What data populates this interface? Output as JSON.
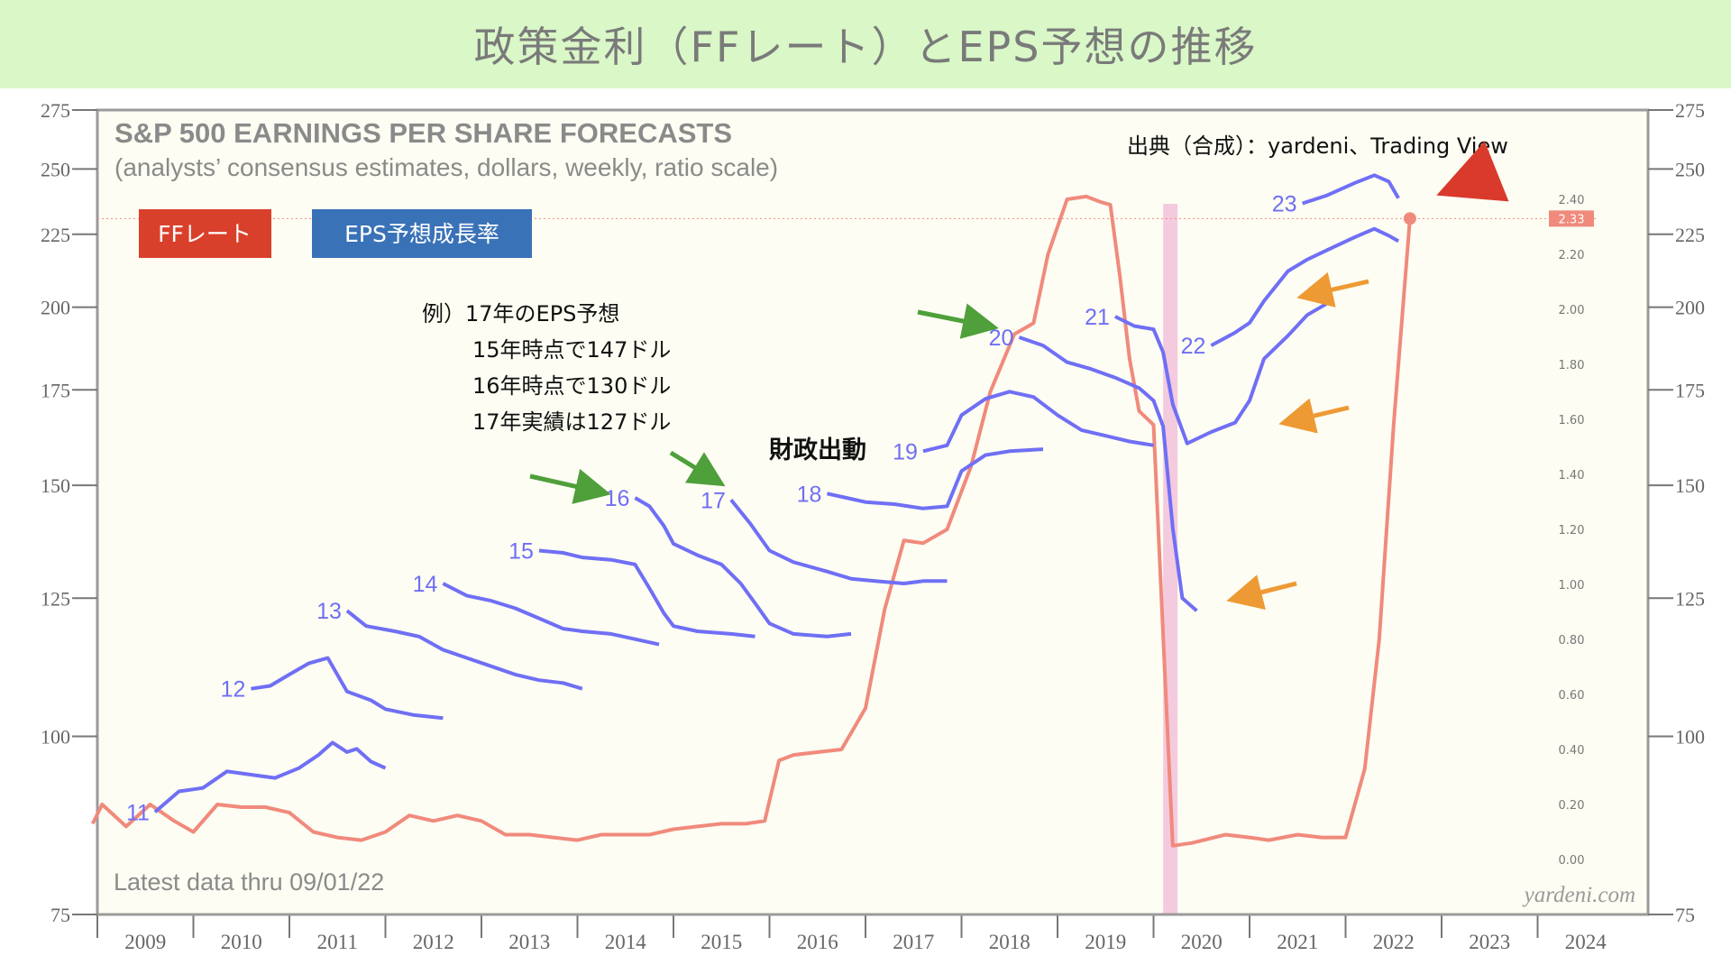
{
  "page_title": "政策金利（FFレート）とEPS予想の推移",
  "chart_data": {
    "type": "line",
    "title": "S&P 500 EARNINGS PER SHARE FORECASTS",
    "subtitle": "(analysts’ consensus estimates, dollars, weekly, ratio scale)",
    "source": "出典（合成）：yardeni、Trading View",
    "footnote": "Latest data thru 09/01/22",
    "watermark": "yardeni.com",
    "left_axis": {
      "scale": "log",
      "ylim": [
        75,
        275
      ],
      "ticks": [
        75,
        100,
        125,
        150,
        175,
        200,
        225,
        250,
        275
      ]
    },
    "right_axis": {
      "ticks": [
        "0.00",
        "0.20",
        "0.40",
        "0.60",
        "0.80",
        "1.00",
        "1.20",
        "1.40",
        "1.60",
        "1.80",
        "2.00",
        "2.20",
        "2.40"
      ],
      "current_value_label": "2.33"
    },
    "x_axis": {
      "categories": [
        "2009",
        "2010",
        "2011",
        "2012",
        "2013",
        "2014",
        "2015",
        "2016",
        "2017",
        "2018",
        "2019",
        "2020",
        "2021",
        "2022",
        "2023",
        "2024"
      ]
    },
    "legend": [
      {
        "label": "FFレート",
        "color": "#d9402b"
      },
      {
        "label": "EPS予想成長率",
        "color": "#3a72b8"
      }
    ],
    "recession_shading": {
      "start": 2020.1,
      "end": 2020.25,
      "color": "#f3c4dc"
    },
    "eps_series": [
      {
        "name": "11",
        "points": [
          [
            2009.6,
            88.5
          ],
          [
            2009.85,
            91.5
          ],
          [
            2010.1,
            92
          ],
          [
            2010.35,
            94.5
          ],
          [
            2010.6,
            94
          ],
          [
            2010.85,
            93.5
          ],
          [
            2011.1,
            95
          ],
          [
            2011.3,
            97
          ],
          [
            2011.45,
            99
          ],
          [
            2011.6,
            97.5
          ],
          [
            2011.7,
            98
          ],
          [
            2011.85,
            96
          ],
          [
            2012.0,
            95
          ]
        ]
      },
      {
        "name": "12",
        "points": [
          [
            2010.6,
            108
          ],
          [
            2010.8,
            108.5
          ],
          [
            2011.0,
            110.5
          ],
          [
            2011.2,
            112.5
          ],
          [
            2011.4,
            113.5
          ],
          [
            2011.6,
            107.5
          ],
          [
            2011.85,
            106
          ],
          [
            2012.0,
            104.5
          ],
          [
            2012.3,
            103.5
          ],
          [
            2012.6,
            103
          ]
        ]
      },
      {
        "name": "13",
        "points": [
          [
            2011.6,
            122.5
          ],
          [
            2011.8,
            119.5
          ],
          [
            2012.1,
            118.5
          ],
          [
            2012.35,
            117.5
          ],
          [
            2012.6,
            115
          ],
          [
            2012.85,
            113.5
          ],
          [
            2013.1,
            112
          ],
          [
            2013.35,
            110.5
          ],
          [
            2013.6,
            109.5
          ],
          [
            2013.85,
            109
          ],
          [
            2014.05,
            108
          ]
        ]
      },
      {
        "name": "14",
        "points": [
          [
            2012.6,
            128
          ],
          [
            2012.85,
            125.5
          ],
          [
            2013.1,
            124.5
          ],
          [
            2013.35,
            123
          ],
          [
            2013.6,
            121
          ],
          [
            2013.85,
            119
          ],
          [
            2014.05,
            118.5
          ],
          [
            2014.35,
            118
          ],
          [
            2014.6,
            117
          ],
          [
            2014.85,
            116
          ]
        ]
      },
      {
        "name": "15",
        "points": [
          [
            2013.6,
            135
          ],
          [
            2013.85,
            134.5
          ],
          [
            2014.05,
            133.5
          ],
          [
            2014.35,
            133
          ],
          [
            2014.6,
            132
          ],
          [
            2014.75,
            127
          ],
          [
            2014.9,
            122
          ],
          [
            2015.0,
            119.5
          ],
          [
            2015.25,
            118.5
          ],
          [
            2015.6,
            118
          ],
          [
            2015.85,
            117.5
          ]
        ]
      },
      {
        "name": "16",
        "points": [
          [
            2014.6,
            147
          ],
          [
            2014.75,
            145
          ],
          [
            2014.9,
            140.5
          ],
          [
            2015.0,
            136.5
          ],
          [
            2015.25,
            134
          ],
          [
            2015.5,
            132
          ],
          [
            2015.7,
            128
          ],
          [
            2015.85,
            124
          ],
          [
            2016.0,
            120
          ],
          [
            2016.25,
            118
          ],
          [
            2016.6,
            117.5
          ],
          [
            2016.85,
            118
          ]
        ]
      },
      {
        "name": "17",
        "points": [
          [
            2015.6,
            146.5
          ],
          [
            2015.8,
            141
          ],
          [
            2016.0,
            135
          ],
          [
            2016.25,
            132.5
          ],
          [
            2016.6,
            130.5
          ],
          [
            2016.85,
            129
          ],
          [
            2017.1,
            128.5
          ],
          [
            2017.4,
            128
          ],
          [
            2017.6,
            128.5
          ],
          [
            2017.85,
            128.5
          ]
        ]
      },
      {
        "name": "18",
        "points": [
          [
            2016.6,
            148
          ],
          [
            2016.8,
            147
          ],
          [
            2017.0,
            146
          ],
          [
            2017.3,
            145.5
          ],
          [
            2017.6,
            144.5
          ],
          [
            2017.85,
            145
          ],
          [
            2018.0,
            153.5
          ],
          [
            2018.25,
            157.5
          ],
          [
            2018.5,
            158.5
          ],
          [
            2018.85,
            159
          ]
        ]
      },
      {
        "name": "19",
        "points": [
          [
            2017.6,
            158.5
          ],
          [
            2017.85,
            160
          ],
          [
            2018.0,
            168
          ],
          [
            2018.25,
            172.5
          ],
          [
            2018.5,
            174.5
          ],
          [
            2018.75,
            173
          ],
          [
            2019.0,
            168
          ],
          [
            2019.25,
            164
          ],
          [
            2019.5,
            162.5
          ],
          [
            2019.75,
            161
          ],
          [
            2020.0,
            160
          ]
        ]
      },
      {
        "name": "20",
        "points": [
          [
            2018.6,
            190.5
          ],
          [
            2018.85,
            188
          ],
          [
            2019.1,
            183
          ],
          [
            2019.35,
            181
          ],
          [
            2019.6,
            178.5
          ],
          [
            2019.85,
            175.5
          ],
          [
            2020.0,
            172
          ],
          [
            2020.1,
            165
          ],
          [
            2020.2,
            140
          ],
          [
            2020.3,
            125
          ],
          [
            2020.45,
            122.5
          ]
        ]
      },
      {
        "name": "21",
        "points": [
          [
            2019.6,
            197
          ],
          [
            2019.8,
            194
          ],
          [
            2020.0,
            193
          ],
          [
            2020.1,
            186
          ],
          [
            2020.2,
            171
          ],
          [
            2020.35,
            160.5
          ],
          [
            2020.6,
            163.5
          ],
          [
            2020.85,
            166
          ],
          [
            2021.0,
            172
          ],
          [
            2021.15,
            184
          ],
          [
            2021.4,
            191
          ],
          [
            2021.6,
            197.5
          ],
          [
            2021.85,
            202
          ]
        ]
      },
      {
        "name": "22",
        "points": [
          [
            2020.6,
            188
          ],
          [
            2020.85,
            192
          ],
          [
            2021.0,
            195
          ],
          [
            2021.15,
            202
          ],
          [
            2021.4,
            212
          ],
          [
            2021.6,
            216
          ],
          [
            2021.85,
            220
          ],
          [
            2022.1,
            224
          ],
          [
            2022.3,
            227
          ],
          [
            2022.45,
            224.5
          ],
          [
            2022.55,
            222.5
          ]
        ]
      },
      {
        "name": "23",
        "points": [
          [
            2021.55,
            236.5
          ],
          [
            2021.8,
            239.5
          ],
          [
            2022.1,
            244.5
          ],
          [
            2022.3,
            247.5
          ],
          [
            2022.45,
            245
          ],
          [
            2022.55,
            238.5
          ]
        ]
      }
    ],
    "ff_rate": {
      "name": "FFレート",
      "points": [
        [
          2008.95,
          0.13
        ],
        [
          2009.05,
          0.2
        ],
        [
          2009.3,
          0.12
        ],
        [
          2009.55,
          0.2
        ],
        [
          2009.8,
          0.14
        ],
        [
          2010.0,
          0.1
        ],
        [
          2010.25,
          0.2
        ],
        [
          2010.5,
          0.19
        ],
        [
          2010.75,
          0.19
        ],
        [
          2011.0,
          0.17
        ],
        [
          2011.25,
          0.1
        ],
        [
          2011.5,
          0.08
        ],
        [
          2011.75,
          0.07
        ],
        [
          2012.0,
          0.1
        ],
        [
          2012.25,
          0.16
        ],
        [
          2012.5,
          0.14
        ],
        [
          2012.75,
          0.16
        ],
        [
          2013.0,
          0.14
        ],
        [
          2013.25,
          0.09
        ],
        [
          2013.5,
          0.09
        ],
        [
          2013.75,
          0.08
        ],
        [
          2014.0,
          0.07
        ],
        [
          2014.25,
          0.09
        ],
        [
          2014.5,
          0.09
        ],
        [
          2014.75,
          0.09
        ],
        [
          2015.0,
          0.11
        ],
        [
          2015.25,
          0.12
        ],
        [
          2015.5,
          0.13
        ],
        [
          2015.75,
          0.13
        ],
        [
          2015.95,
          0.14
        ],
        [
          2016.1,
          0.36
        ],
        [
          2016.25,
          0.38
        ],
        [
          2016.5,
          0.39
        ],
        [
          2016.75,
          0.4
        ],
        [
          2017.0,
          0.55
        ],
        [
          2017.2,
          0.91
        ],
        [
          2017.4,
          1.16
        ],
        [
          2017.6,
          1.15
        ],
        [
          2017.85,
          1.2
        ],
        [
          2018.1,
          1.43
        ],
        [
          2018.3,
          1.7
        ],
        [
          2018.55,
          1.91
        ],
        [
          2018.75,
          1.95
        ],
        [
          2018.9,
          2.2
        ],
        [
          2019.1,
          2.4
        ],
        [
          2019.3,
          2.41
        ],
        [
          2019.45,
          2.39
        ],
        [
          2019.55,
          2.38
        ],
        [
          2019.65,
          2.12
        ],
        [
          2019.75,
          1.82
        ],
        [
          2019.85,
          1.63
        ],
        [
          2020.0,
          1.58
        ],
        [
          2020.2,
          0.05
        ],
        [
          2020.4,
          0.06
        ],
        [
          2020.75,
          0.09
        ],
        [
          2021.0,
          0.08
        ],
        [
          2021.2,
          0.07
        ],
        [
          2021.5,
          0.09
        ],
        [
          2021.75,
          0.08
        ],
        [
          2022.0,
          0.08
        ],
        [
          2022.2,
          0.33
        ],
        [
          2022.35,
          0.8
        ],
        [
          2022.5,
          1.58
        ],
        [
          2022.67,
          2.33
        ]
      ]
    },
    "annotations": [
      "例）17年のEPS予想",
      "15年時点で147ドル",
      "16年時点で130ドル",
      "17年実績は127ドル"
    ],
    "fiscal_label": "財政出動"
  },
  "colors": {
    "banner_bg": "#d9f7c7",
    "plot_bg": "#fdfdf3",
    "eps_line": "#6f6ff5",
    "ff_line": "#f08a7c",
    "green_arrow": "#4f9f3a",
    "orange_arrow": "#ee9a34",
    "red_arrow": "#d93a2c"
  }
}
